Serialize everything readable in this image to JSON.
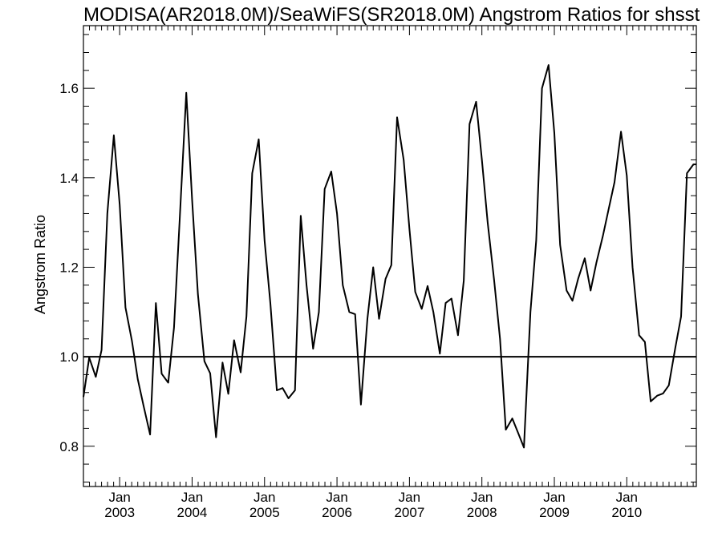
{
  "chart_data": {
    "type": "line",
    "title": "MODISA(AR2018.0M)/SeaWiFS(SR2018.0M)  Angstrom Ratios for shsst",
    "xlabel": "",
    "ylabel": "Angstrom Ratio",
    "xlim": [
      2002.5,
      2010.96
    ],
    "ylim": [
      0.71,
      1.74
    ],
    "yticks": [
      0.8,
      1.0,
      1.2,
      1.4,
      1.6
    ],
    "ytick_labels": [
      "0.8",
      "1.0",
      "1.2",
      "1.4",
      "1.6"
    ],
    "xticks": [
      {
        "month": "Jan",
        "year": "2003",
        "x": 2003.0
      },
      {
        "month": "Jan",
        "year": "2004",
        "x": 2004.0
      },
      {
        "month": "Jan",
        "year": "2005",
        "x": 2005.0
      },
      {
        "month": "Jan",
        "year": "2006",
        "x": 2006.0
      },
      {
        "month": "Jan",
        "year": "2007",
        "x": 2007.0
      },
      {
        "month": "Jan",
        "year": "2008",
        "x": 2008.0
      },
      {
        "month": "Jan",
        "year": "2009",
        "x": 2009.0
      },
      {
        "month": "Jan",
        "year": "2010",
        "x": 2010.0
      }
    ],
    "reference_line": 1.0,
    "grid": false,
    "series": [
      {
        "x": [
          2002.5,
          2002.58,
          2002.67,
          2002.75,
          2002.83,
          2002.92,
          2003.0,
          2003.08,
          2003.17,
          2003.25,
          2003.33,
          2003.42,
          2003.5,
          2003.58,
          2003.67,
          2003.75,
          2003.83,
          2003.92,
          2004.0,
          2004.08,
          2004.17,
          2004.25,
          2004.33,
          2004.42,
          2004.5,
          2004.58,
          2004.67,
          2004.75,
          2004.83,
          2004.92,
          2005.0,
          2005.08,
          2005.17,
          2005.25,
          2005.33,
          2005.42,
          2005.5,
          2005.58,
          2005.67,
          2005.75,
          2005.83,
          2005.92,
          2006.0,
          2006.08,
          2006.17,
          2006.25,
          2006.33,
          2006.42,
          2006.5,
          2006.58,
          2006.67,
          2006.75,
          2006.83,
          2006.92,
          2007.0,
          2007.08,
          2007.17,
          2007.25,
          2007.33,
          2007.42,
          2007.5,
          2007.58,
          2007.67,
          2007.75,
          2007.83,
          2007.92,
          2008.0,
          2008.08,
          2008.17,
          2008.25,
          2008.33,
          2008.42,
          2008.5,
          2008.58,
          2008.67,
          2008.75,
          2008.83,
          2008.92,
          2009.0,
          2009.08,
          2009.17,
          2009.25,
          2009.33,
          2009.42,
          2009.5,
          2009.58,
          2009.67,
          2009.75,
          2009.83,
          2009.92,
          2010.0,
          2010.08,
          2010.17,
          2010.25,
          2010.33,
          2010.42,
          2010.5,
          2010.58,
          2010.67,
          2010.75,
          2010.83,
          2010.92,
          2010.96
        ],
        "values": [
          0.91,
          0.998,
          0.955,
          1.015,
          1.32,
          1.495,
          1.34,
          1.11,
          1.035,
          0.95,
          0.89,
          0.826,
          1.12,
          0.962,
          0.942,
          1.065,
          1.31,
          1.59,
          1.35,
          1.14,
          0.99,
          0.963,
          0.82,
          0.987,
          0.917,
          1.037,
          0.965,
          1.09,
          1.41,
          1.486,
          1.26,
          1.12,
          0.925,
          0.93,
          0.907,
          0.925,
          1.315,
          1.16,
          1.018,
          1.1,
          1.375,
          1.414,
          1.32,
          1.16,
          1.1,
          1.095,
          0.893,
          1.085,
          1.2,
          1.085,
          1.174,
          1.205,
          1.535,
          1.44,
          1.285,
          1.145,
          1.107,
          1.158,
          1.1,
          1.007,
          1.12,
          1.13,
          1.048,
          1.17,
          1.52,
          1.57,
          1.44,
          1.3,
          1.17,
          1.04,
          0.837,
          0.862,
          0.83,
          0.797,
          1.1,
          1.26,
          1.6,
          1.652,
          1.5,
          1.25,
          1.148,
          1.125,
          1.175,
          1.22,
          1.148,
          1.21,
          1.27,
          1.33,
          1.39,
          1.503,
          1.405,
          1.2,
          1.048,
          1.033,
          0.9,
          0.913,
          0.918,
          0.936,
          1.02,
          1.09,
          1.41,
          1.43,
          1.43
        ]
      }
    ]
  }
}
